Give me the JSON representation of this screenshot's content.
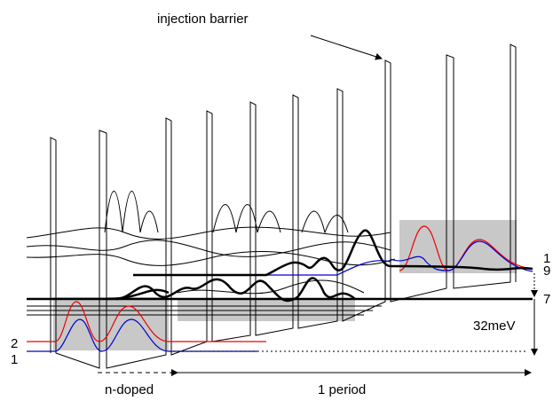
{
  "labels": {
    "injection_barrier": "injection barrier",
    "level_top": "1",
    "level_9": "9",
    "level_7": "7",
    "energy": "32meV",
    "level_2": "2",
    "level_1": "1",
    "n_doped": "n-doped",
    "period": "1 period"
  }
}
